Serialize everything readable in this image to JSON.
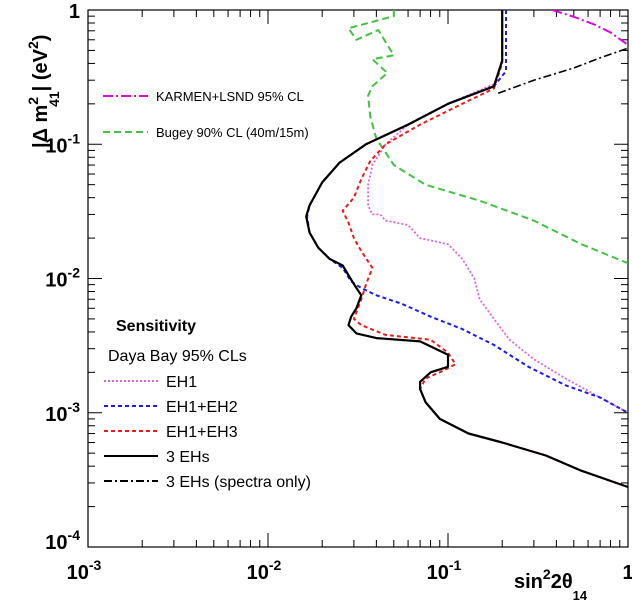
{
  "chart_data": {
    "type": "line",
    "scale": {
      "x": "log",
      "y": "log"
    },
    "xlim": [
      0.001,
      1
    ],
    "ylim": [
      0.0001,
      1
    ],
    "x_ticks": [
      {
        "base": "10",
        "exp": "-3"
      },
      {
        "base": "10",
        "exp": "-2"
      },
      {
        "base": "10",
        "exp": "-1"
      },
      {
        "base": "1",
        "exp": ""
      }
    ],
    "y_ticks": [
      {
        "base": "10",
        "exp": "-4"
      },
      {
        "base": "10",
        "exp": "-3"
      },
      {
        "base": "10",
        "exp": "-2"
      },
      {
        "base": "10",
        "exp": "-1"
      },
      {
        "base": "1",
        "exp": ""
      }
    ],
    "xlabel": {
      "main": "sin",
      "sup": "2",
      "mid": "2θ",
      "sub": "14"
    },
    "ylabel": {
      "open": "|Δ m",
      "sup": "2",
      "sub": "41",
      "close": "| (eV",
      "unitsup": "2",
      "end": ")"
    },
    "legend_top": [
      {
        "label": "KARMEN+LSND 95% CL",
        "color": "#e000e0",
        "dash": "10,3,2,3"
      },
      {
        "label": "Bugey 90% CL (40m/15m)",
        "color": "#44c044",
        "dash": "7,4"
      }
    ],
    "legend_bottom_title": "Sensitivity",
    "legend_bottom_subtitle": "Daya Bay 95% CLs",
    "legend_bottom": [
      {
        "label": "EH1",
        "color": "#e060e0",
        "dash": "2,2"
      },
      {
        "label": "EH1+EH2",
        "color": "#1a1aee",
        "dash": "4,3"
      },
      {
        "label": "EH1+EH3",
        "color": "#ee1a1a",
        "dash": "4,3"
      },
      {
        "label": "3 EHs",
        "color": "#000000",
        "dash": ""
      },
      {
        "label": "3 EHs (spectra only)",
        "color": "#000000",
        "dash": "8,3,2,3"
      }
    ],
    "series": [
      {
        "name": "KARMEN+LSND 95% CL",
        "color": "#e000e0",
        "dash": "10,3,2,3",
        "width": 2,
        "points": [
          [
            0.38,
            1.0
          ],
          [
            0.5,
            0.89
          ],
          [
            0.65,
            0.78
          ],
          [
            0.8,
            0.68
          ],
          [
            1.0,
            0.55
          ]
        ]
      },
      {
        "name": "Bugey 90% CL (40m/15m)",
        "color": "#44c044",
        "dash": "7,4",
        "width": 2,
        "points": [
          [
            0.05,
            1.0
          ],
          [
            0.05,
            0.9
          ],
          [
            0.028,
            0.73
          ],
          [
            0.031,
            0.6
          ],
          [
            0.041,
            0.71
          ],
          [
            0.05,
            0.46
          ],
          [
            0.038,
            0.43
          ],
          [
            0.046,
            0.34
          ],
          [
            0.038,
            0.27
          ],
          [
            0.036,
            0.23
          ],
          [
            0.037,
            0.16
          ],
          [
            0.04,
            0.11
          ],
          [
            0.05,
            0.07
          ],
          [
            0.075,
            0.05
          ],
          [
            0.15,
            0.038
          ],
          [
            0.3,
            0.027
          ],
          [
            0.55,
            0.018
          ],
          [
            1.0,
            0.013
          ]
        ]
      },
      {
        "name": "EH1",
        "color": "#e060e0",
        "dash": "2,2",
        "width": 1.8,
        "points": [
          [
            0.2,
            1.0
          ],
          [
            0.2,
            0.4
          ],
          [
            0.18,
            0.28
          ],
          [
            0.1,
            0.2
          ],
          [
            0.06,
            0.14
          ],
          [
            0.045,
            0.1
          ],
          [
            0.038,
            0.07
          ],
          [
            0.036,
            0.05
          ],
          [
            0.036,
            0.035
          ],
          [
            0.038,
            0.03
          ],
          [
            0.042,
            0.03
          ],
          [
            0.045,
            0.027
          ],
          [
            0.06,
            0.025
          ],
          [
            0.07,
            0.02
          ],
          [
            0.1,
            0.018
          ],
          [
            0.12,
            0.014
          ],
          [
            0.14,
            0.01
          ],
          [
            0.15,
            0.007
          ],
          [
            0.18,
            0.005
          ],
          [
            0.22,
            0.0035
          ],
          [
            0.3,
            0.0025
          ],
          [
            0.45,
            0.0018
          ],
          [
            0.7,
            0.0013
          ],
          [
            1.0,
            0.001
          ]
        ]
      },
      {
        "name": "EH1+EH2",
        "color": "#1a1aee",
        "dash": "4,3",
        "width": 2,
        "points": [
          [
            0.21,
            1.0
          ],
          [
            0.21,
            0.35
          ],
          [
            0.18,
            0.27
          ],
          [
            0.1,
            0.2
          ],
          [
            0.06,
            0.14
          ],
          [
            0.035,
            0.1
          ],
          [
            0.025,
            0.073
          ],
          [
            0.02,
            0.052
          ],
          [
            0.017,
            0.035
          ],
          [
            0.0165,
            0.029
          ],
          [
            0.017,
            0.022
          ],
          [
            0.019,
            0.017
          ],
          [
            0.022,
            0.014
          ],
          [
            0.026,
            0.012
          ],
          [
            0.029,
            0.0095
          ],
          [
            0.033,
            0.0085
          ],
          [
            0.04,
            0.0075
          ],
          [
            0.055,
            0.0065
          ],
          [
            0.08,
            0.0052
          ],
          [
            0.12,
            0.0042
          ],
          [
            0.18,
            0.0032
          ],
          [
            0.28,
            0.0022
          ],
          [
            0.45,
            0.0016
          ],
          [
            0.7,
            0.0013
          ],
          [
            1.0,
            0.001
          ]
        ]
      },
      {
        "name": "EH1+EH3",
        "color": "#ee1a1a",
        "dash": "4,3",
        "width": 2,
        "points": [
          [
            0.2,
            1.0
          ],
          [
            0.2,
            0.4
          ],
          [
            0.18,
            0.26
          ],
          [
            0.12,
            0.2
          ],
          [
            0.07,
            0.14
          ],
          [
            0.045,
            0.1
          ],
          [
            0.037,
            0.075
          ],
          [
            0.033,
            0.055
          ],
          [
            0.03,
            0.04
          ],
          [
            0.026,
            0.032
          ],
          [
            0.028,
            0.026
          ],
          [
            0.03,
            0.02
          ],
          [
            0.033,
            0.016
          ],
          [
            0.038,
            0.012
          ],
          [
            0.035,
            0.009
          ],
          [
            0.033,
            0.007
          ],
          [
            0.03,
            0.005
          ],
          [
            0.033,
            0.0045
          ],
          [
            0.045,
            0.0038
          ],
          [
            0.08,
            0.0035
          ],
          [
            0.1,
            0.0028
          ],
          [
            0.11,
            0.0023
          ],
          [
            0.09,
            0.002
          ],
          [
            0.075,
            0.0018
          ],
          [
            0.07,
            0.0015
          ],
          [
            0.075,
            0.0012
          ],
          [
            0.09,
            0.0009
          ],
          [
            0.13,
            0.0007
          ],
          [
            0.2,
            0.0006
          ],
          [
            0.35,
            0.00048
          ],
          [
            0.55,
            0.00037
          ],
          [
            1.0,
            0.00028
          ]
        ]
      },
      {
        "name": "3 EHs",
        "color": "#000000",
        "dash": "",
        "width": 2.2,
        "points": [
          [
            0.2,
            1.0
          ],
          [
            0.2,
            0.42
          ],
          [
            0.18,
            0.27
          ],
          [
            0.1,
            0.2
          ],
          [
            0.06,
            0.14
          ],
          [
            0.035,
            0.1
          ],
          [
            0.025,
            0.073
          ],
          [
            0.02,
            0.052
          ],
          [
            0.017,
            0.035
          ],
          [
            0.0163,
            0.029
          ],
          [
            0.017,
            0.022
          ],
          [
            0.019,
            0.017
          ],
          [
            0.022,
            0.014
          ],
          [
            0.026,
            0.0125
          ],
          [
            0.029,
            0.0098
          ],
          [
            0.031,
            0.0085
          ],
          [
            0.033,
            0.0075
          ],
          [
            0.031,
            0.006
          ],
          [
            0.029,
            0.0052
          ],
          [
            0.028,
            0.0045
          ],
          [
            0.031,
            0.0039
          ],
          [
            0.04,
            0.0036
          ],
          [
            0.07,
            0.0034
          ],
          [
            0.1,
            0.0027
          ],
          [
            0.1,
            0.0022
          ],
          [
            0.08,
            0.002
          ],
          [
            0.07,
            0.0017
          ],
          [
            0.07,
            0.0015
          ],
          [
            0.075,
            0.0012
          ],
          [
            0.09,
            0.0009
          ],
          [
            0.13,
            0.0007
          ],
          [
            0.2,
            0.0006
          ],
          [
            0.35,
            0.00048
          ],
          [
            0.55,
            0.00037
          ],
          [
            1.0,
            0.00028
          ]
        ]
      },
      {
        "name": "3 EHs (spectra only)",
        "color": "#000000",
        "dash": "8,3,2,3",
        "width": 1.6,
        "points": [
          [
            0.19,
            0.24
          ],
          [
            0.3,
            0.3
          ],
          [
            0.5,
            0.37
          ],
          [
            0.7,
            0.44
          ],
          [
            1.0,
            0.52
          ]
        ]
      }
    ]
  }
}
